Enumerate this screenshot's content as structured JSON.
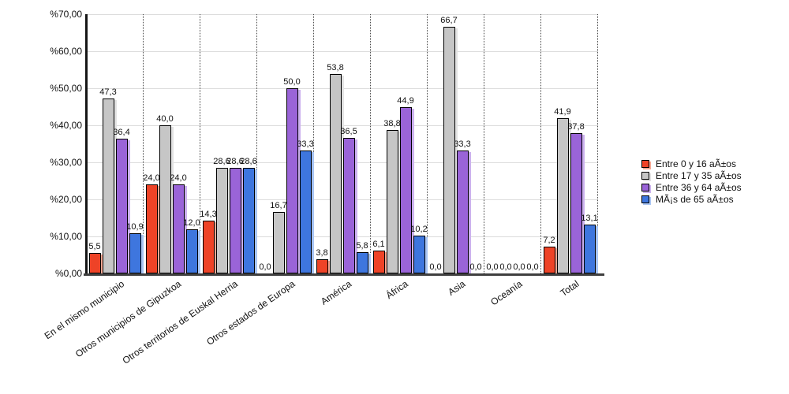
{
  "chart_data": {
    "type": "bar",
    "title": "",
    "xlabel": "",
    "ylabel": "",
    "ylim": [
      0,
      70
    ],
    "grid": "horizontal-solid, vertical-dotted-category-separators",
    "legend_position": "right",
    "y_ticks": [
      "%70,00",
      "%60,00",
      "%50,00",
      "%40,00",
      "%30,00",
      "%20,00",
      "%10,00",
      "%0,00"
    ],
    "y_tick_values": [
      70,
      60,
      50,
      40,
      30,
      20,
      10,
      0
    ],
    "categories": [
      "En el mismo municipio",
      "Otros municipios de Gipuzkoa",
      "Otros territorios de Euskal Herria",
      "Otros estados de Europa",
      "América",
      "África",
      "Asia",
      "Oceanía",
      "Total"
    ],
    "series": [
      {
        "name": "Entre 0 y 16 aÃ±os",
        "color": "#ee4327",
        "shadow_color": "#f8a894",
        "values": [
          5.5,
          24.0,
          14.3,
          0.0,
          3.8,
          6.1,
          0.0,
          0.0,
          7.2
        ],
        "value_labels": [
          "5,5",
          "24,0",
          "14,3",
          "0,0",
          "3,8",
          "6,1",
          "0,0",
          "0,0",
          "7,2"
        ]
      },
      {
        "name": "Entre 17 y 35 aÃ±os",
        "color": "#c6c6c6",
        "shadow_color": "#e3e3e3",
        "values": [
          47.3,
          40.0,
          28.6,
          16.7,
          53.8,
          38.8,
          66.7,
          0.0,
          41.9
        ],
        "value_labels": [
          "47,3",
          "40,0",
          "28,6",
          "16,7",
          "53,8",
          "38,8",
          "66,7",
          "0,0",
          "41,9"
        ]
      },
      {
        "name": "Entre 36 y 64 aÃ±os",
        "color": "#9a64d8",
        "shadow_color": "#ccb2ee",
        "values": [
          36.4,
          24.0,
          28.6,
          50.0,
          36.5,
          44.9,
          33.3,
          0.0,
          37.8
        ],
        "value_labels": [
          "36,4",
          "24,0",
          "28,6",
          "50,0",
          "36,5",
          "44,9",
          "33,3",
          "0,0",
          "37,8"
        ]
      },
      {
        "name": "MÃ¡s de 65 aÃ±os",
        "color": "#3e76de",
        "shadow_color": "#a9c5f4",
        "values": [
          10.9,
          12.0,
          28.6,
          33.3,
          5.8,
          10.2,
          0.0,
          0.0,
          13.1
        ],
        "value_labels": [
          "10,9",
          "12,0",
          "28,6",
          "33,3",
          "5,8",
          "10,2",
          "0,0",
          "0,0",
          "13,1"
        ]
      }
    ]
  },
  "palette": {
    "background": "#ffffff",
    "y_axis_line": "#151515",
    "x_axis_line": "#3f3f3f",
    "gridline": "#dcdcdc",
    "category_separator": "#4a4a4a",
    "text": "#111111"
  }
}
